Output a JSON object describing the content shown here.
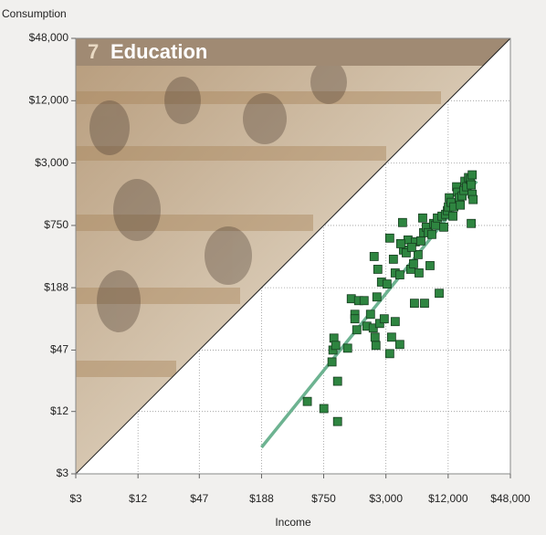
{
  "chart_data": {
    "type": "scatter",
    "title_number": "7",
    "title": "Education",
    "x_label": "Income",
    "y_label": "Consumption",
    "xscale": "log",
    "yscale": "log",
    "grid": true,
    "xlim": [
      3,
      48000
    ],
    "ylim": [
      3,
      48000
    ],
    "xticks": [
      {
        "value": 3,
        "label": "$3"
      },
      {
        "value": 12,
        "label": "$12"
      },
      {
        "value": 47,
        "label": "$47"
      },
      {
        "value": 188,
        "label": "$188"
      },
      {
        "value": 750,
        "label": "$750"
      },
      {
        "value": 3000,
        "label": "$3,000"
      },
      {
        "value": 12000,
        "label": "$12,000"
      },
      {
        "value": 48000,
        "label": "$48,000"
      }
    ],
    "yticks": [
      {
        "value": 3,
        "label": "$3"
      },
      {
        "value": 12,
        "label": "$12"
      },
      {
        "value": 47,
        "label": "$47"
      },
      {
        "value": 188,
        "label": "$188"
      },
      {
        "value": 750,
        "label": "$750"
      },
      {
        "value": 3000,
        "label": "$3,000"
      },
      {
        "value": 12000,
        "label": "$12,000"
      },
      {
        "value": 48000,
        "label": "$48,000"
      }
    ],
    "color": "#2e8540",
    "x": [
      521,
      753,
      1022,
      1022,
      903,
      922,
      942,
      981,
      1278,
      1387,
      1503,
      1633,
      1568,
      1503,
      1846,
      1962,
      2128,
      2262,
      2403,
      2355,
      2453,
      2308,
      2505,
      2610,
      2890,
      2718,
      3072,
      3266,
      3402,
      3690,
      4086,
      3266,
      3543,
      3690,
      4086,
      4344,
      4434,
      4716,
      4908,
      5217,
      5550,
      5662,
      5778,
      6144,
      6534,
      6804,
      7089,
      6948,
      7383,
      7692,
      8013,
      8346,
      8688,
      9054,
      9828,
      9435,
      10446,
      10881,
      11337,
      11811,
      12057,
      12303,
      12819,
      13629,
      14487,
      14784,
      15402,
      16371,
      17055,
      17412,
      18138,
      18894,
      19683,
      20505,
      20058,
      20505,
      20934,
      20058,
      15735,
      13341,
      4170,
      5325,
      6270
    ],
    "values": [
      15.0,
      12.8,
      9.6,
      23.5,
      36.1,
      47.0,
      61.3,
      52.1,
      49.0,
      147,
      104,
      141,
      73.7,
      94.1,
      141,
      79.9,
      104,
      76.7,
      52.1,
      62.6,
      153,
      376,
      283,
      84.9,
      94.1,
      213,
      204,
      43.4,
      62.6,
      88.5,
      53.2,
      566,
      354,
      261,
      250,
      800,
      434,
      408,
      543,
      283,
      320,
      133,
      521,
      392,
      532,
      885,
      133,
      639,
      722,
      639,
      307,
      614,
      784,
      753,
      166,
      885,
      922,
      722,
      961,
      1043,
      1132,
      1387,
      1253,
      1132,
      1771,
      1568,
      1387,
      1445,
      1633,
      2003,
      1771,
      2174,
      2087,
      2308,
      1846,
      1504,
      1333,
      784,
      1178,
      922,
      500,
      461,
      261
    ],
    "fit_line": {
      "x": [
        188,
        22663
      ],
      "values": [
        5.4,
        2003
      ],
      "color": "#6db391"
    }
  }
}
